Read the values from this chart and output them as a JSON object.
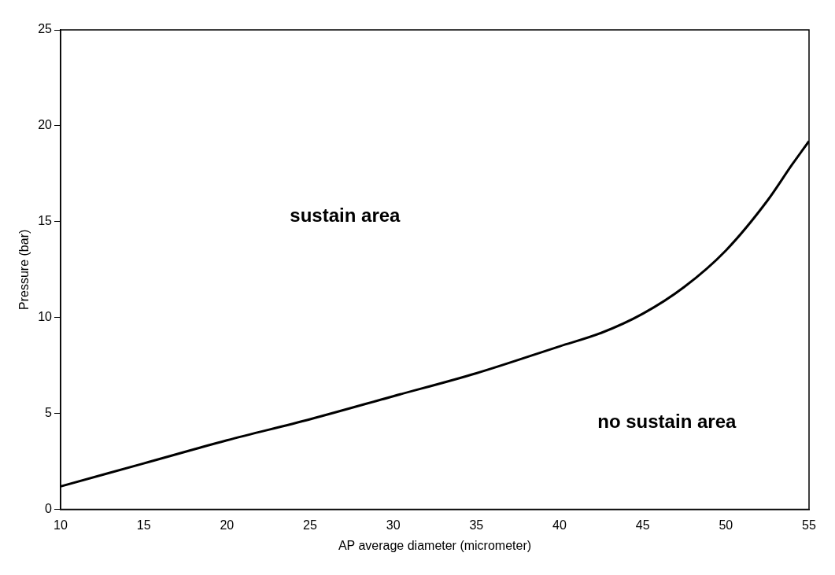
{
  "chart_data": {
    "type": "line",
    "xlabel": "AP average diameter (micrometer)",
    "ylabel": "Pressure (bar)",
    "x": [
      10,
      15,
      20,
      25,
      30,
      35,
      40,
      42.5,
      45,
      47.5,
      50,
      52.5,
      54,
      55
    ],
    "series": [
      {
        "color": "#000000",
        "values": [
          1.2,
          2.4,
          3.6,
          4.7,
          5.9,
          7.1,
          8.5,
          9.2,
          10.2,
          11.6,
          13.5,
          16.1,
          18.0,
          19.2
        ]
      }
    ],
    "xlim": [
      10,
      55
    ],
    "xticks": [
      10,
      15,
      20,
      25,
      30,
      35,
      40,
      45,
      50,
      55
    ],
    "ylim": [
      0,
      25
    ],
    "yticks": [
      0,
      5,
      10,
      15,
      20,
      25
    ],
    "grid": false,
    "legend": false,
    "marker": "none",
    "line_style": "solid",
    "annotations": [
      "sustain area",
      "no sustain area"
    ]
  }
}
